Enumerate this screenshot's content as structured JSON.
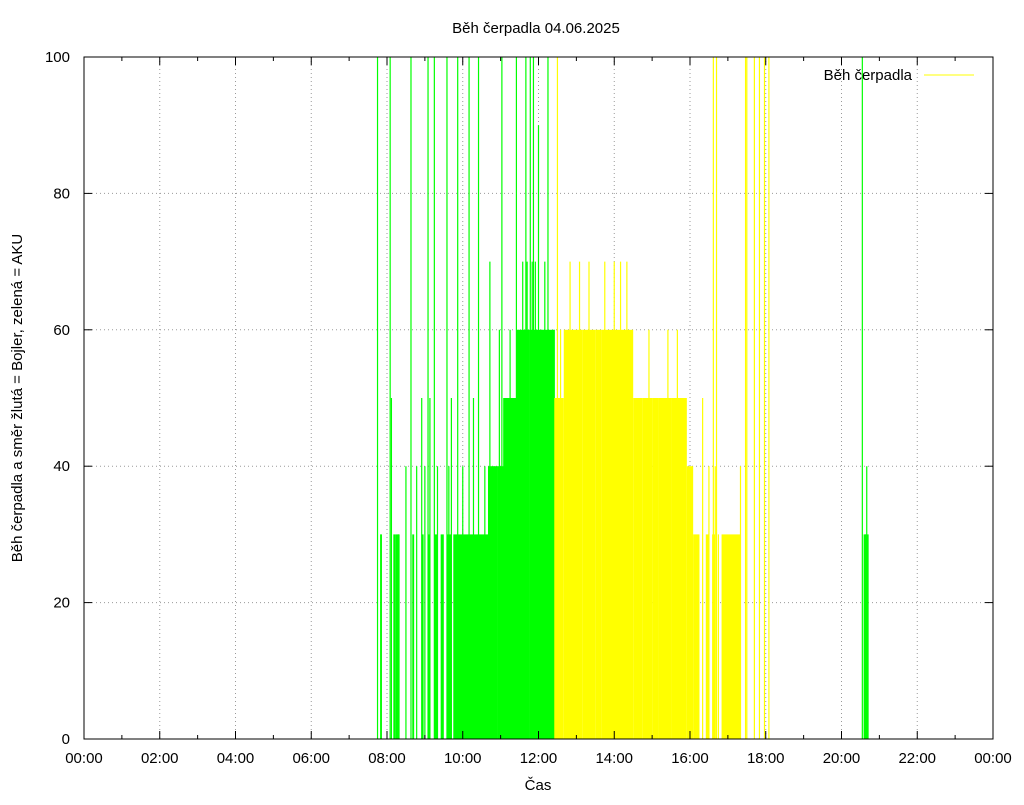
{
  "chart_data": {
    "type": "bar",
    "title": "Běh čerpadla 04.06.2025",
    "xlabel": "Čas",
    "ylabel": "Běh čerpadla a směr žlutá = Bojler, zelená = AKU",
    "xlim": [
      "00:00",
      "24:00"
    ],
    "ylim": [
      0,
      100
    ],
    "x_ticks": [
      "00:00",
      "02:00",
      "04:00",
      "06:00",
      "08:00",
      "10:00",
      "12:00",
      "14:00",
      "16:00",
      "18:00",
      "20:00",
      "22:00",
      "00:00"
    ],
    "y_ticks": [
      "0",
      "20",
      "40",
      "60",
      "80",
      "100"
    ],
    "grid": true,
    "legend": {
      "placement": "top-right",
      "entries": [
        {
          "label": "Běh čerpadla",
          "color": "#ffff00"
        }
      ]
    },
    "colors": {
      "aku": "#00ff00",
      "bojler": "#ffff00",
      "grid": "#9a9a9a"
    },
    "series": [
      {
        "name": "Běh čerpadla",
        "color": "#00ff00",
        "segments": [
          {
            "start": "07:50",
            "end": "07:52",
            "value": 30
          },
          {
            "start": "08:10",
            "end": "08:14",
            "value": 30
          },
          {
            "start": "08:14",
            "end": "08:20",
            "value": 30
          },
          {
            "start": "08:40",
            "end": "08:43",
            "value": 30
          },
          {
            "start": "08:55",
            "end": "08:58",
            "value": 30
          },
          {
            "start": "09:05",
            "end": "09:08",
            "value": 30
          },
          {
            "start": "09:15",
            "end": "09:20",
            "value": 30
          },
          {
            "start": "09:25",
            "end": "09:30",
            "value": 30
          },
          {
            "start": "09:35",
            "end": "09:42",
            "value": 30
          },
          {
            "start": "09:45",
            "end": "10:00",
            "value": 30
          },
          {
            "start": "10:00",
            "end": "10:25",
            "value": 30
          },
          {
            "start": "10:25",
            "end": "10:40",
            "value": 30
          },
          {
            "start": "10:40",
            "end": "10:55",
            "value": 40
          },
          {
            "start": "10:55",
            "end": "11:05",
            "value": 40
          },
          {
            "start": "11:05",
            "end": "11:15",
            "value": 50
          },
          {
            "start": "11:15",
            "end": "11:25",
            "value": 50
          },
          {
            "start": "11:25",
            "end": "11:35",
            "value": 60
          },
          {
            "start": "11:35",
            "end": "11:45",
            "value": 60
          },
          {
            "start": "11:45",
            "end": "11:52",
            "value": 60
          },
          {
            "start": "11:52",
            "end": "12:00",
            "value": 60
          },
          {
            "start": "12:00",
            "end": "12:25",
            "value": 60
          },
          {
            "start": "20:35",
            "end": "20:38",
            "value": 30
          },
          {
            "start": "20:38",
            "end": "20:43",
            "value": 30
          }
        ],
        "spikes": [
          {
            "t": "07:45",
            "value": 100
          },
          {
            "t": "07:50",
            "value": 30
          },
          {
            "t": "08:05",
            "value": 100
          },
          {
            "t": "08:07",
            "value": 50
          },
          {
            "t": "08:18",
            "value": 30
          },
          {
            "t": "08:30",
            "value": 40
          },
          {
            "t": "08:38",
            "value": 100
          },
          {
            "t": "08:47",
            "value": 40
          },
          {
            "t": "08:55",
            "value": 50
          },
          {
            "t": "09:00",
            "value": 40
          },
          {
            "t": "09:05",
            "value": 100
          },
          {
            "t": "09:08",
            "value": 50
          },
          {
            "t": "09:15",
            "value": 100
          },
          {
            "t": "09:20",
            "value": 40
          },
          {
            "t": "09:35",
            "value": 100
          },
          {
            "t": "09:38",
            "value": 40
          },
          {
            "t": "09:42",
            "value": 50
          },
          {
            "t": "09:52",
            "value": 100
          },
          {
            "t": "10:00",
            "value": 40
          },
          {
            "t": "10:10",
            "value": 100
          },
          {
            "t": "10:17",
            "value": 50
          },
          {
            "t": "10:25",
            "value": 100
          },
          {
            "t": "10:35",
            "value": 40
          },
          {
            "t": "10:43",
            "value": 70
          },
          {
            "t": "10:50",
            "value": 40
          },
          {
            "t": "10:58",
            "value": 60
          },
          {
            "t": "11:02",
            "value": 100
          },
          {
            "t": "11:05",
            "value": 50
          },
          {
            "t": "11:15",
            "value": 60
          },
          {
            "t": "11:20",
            "value": 50
          },
          {
            "t": "11:25",
            "value": 100
          },
          {
            "t": "11:28",
            "value": 60
          },
          {
            "t": "11:35",
            "value": 70
          },
          {
            "t": "11:40",
            "value": 100
          },
          {
            "t": "11:42",
            "value": 70
          },
          {
            "t": "11:47",
            "value": 100
          },
          {
            "t": "11:50",
            "value": 70
          },
          {
            "t": "11:52",
            "value": 100
          },
          {
            "t": "11:55",
            "value": 70
          },
          {
            "t": "12:00",
            "value": 90
          },
          {
            "t": "12:05",
            "value": 60
          },
          {
            "t": "12:10",
            "value": 70
          },
          {
            "t": "12:15",
            "value": 100
          },
          {
            "t": "12:25",
            "value": 60
          },
          {
            "t": "20:33",
            "value": 100
          },
          {
            "t": "20:38",
            "value": 30
          },
          {
            "t": "20:40",
            "value": 40
          }
        ]
      },
      {
        "name": "Běh čerpadla",
        "color": "#ffff00",
        "segments": [
          {
            "start": "12:25",
            "end": "12:40",
            "value": 50
          },
          {
            "start": "12:40",
            "end": "13:10",
            "value": 60
          },
          {
            "start": "13:10",
            "end": "13:30",
            "value": 60
          },
          {
            "start": "13:30",
            "end": "13:40",
            "value": 60
          },
          {
            "start": "13:40",
            "end": "14:00",
            "value": 60
          },
          {
            "start": "14:00",
            "end": "14:30",
            "value": 60
          },
          {
            "start": "14:30",
            "end": "14:45",
            "value": 50
          },
          {
            "start": "14:45",
            "end": "15:00",
            "value": 50
          },
          {
            "start": "15:00",
            "end": "15:10",
            "value": 50
          },
          {
            "start": "15:10",
            "end": "15:30",
            "value": 50
          },
          {
            "start": "15:30",
            "end": "15:55",
            "value": 50
          },
          {
            "start": "15:55",
            "end": "16:05",
            "value": 40
          },
          {
            "start": "16:05",
            "end": "16:15",
            "value": 30
          },
          {
            "start": "16:25",
            "end": "16:30",
            "value": 30
          },
          {
            "start": "16:35",
            "end": "16:40",
            "value": 30
          },
          {
            "start": "16:50",
            "end": "17:20",
            "value": 30
          }
        ],
        "spikes": [
          {
            "t": "12:30",
            "value": 100
          },
          {
            "t": "12:35",
            "value": 60
          },
          {
            "t": "12:50",
            "value": 70
          },
          {
            "t": "13:05",
            "value": 70
          },
          {
            "t": "13:20",
            "value": 70
          },
          {
            "t": "13:45",
            "value": 70
          },
          {
            "t": "14:00",
            "value": 70
          },
          {
            "t": "14:10",
            "value": 70
          },
          {
            "t": "14:20",
            "value": 70
          },
          {
            "t": "14:55",
            "value": 60
          },
          {
            "t": "15:25",
            "value": 60
          },
          {
            "t": "15:40",
            "value": 60
          },
          {
            "t": "16:20",
            "value": 50
          },
          {
            "t": "16:30",
            "value": 40
          },
          {
            "t": "16:37",
            "value": 100
          },
          {
            "t": "16:40",
            "value": 40
          },
          {
            "t": "16:42",
            "value": 100
          },
          {
            "t": "16:45",
            "value": 30
          },
          {
            "t": "17:20",
            "value": 40
          },
          {
            "t": "17:28",
            "value": 100
          },
          {
            "t": "17:30",
            "value": 100
          },
          {
            "t": "17:42",
            "value": 100
          },
          {
            "t": "17:50",
            "value": 100
          },
          {
            "t": "17:58",
            "value": 100
          },
          {
            "t": "18:05",
            "value": 100
          }
        ]
      }
    ]
  }
}
